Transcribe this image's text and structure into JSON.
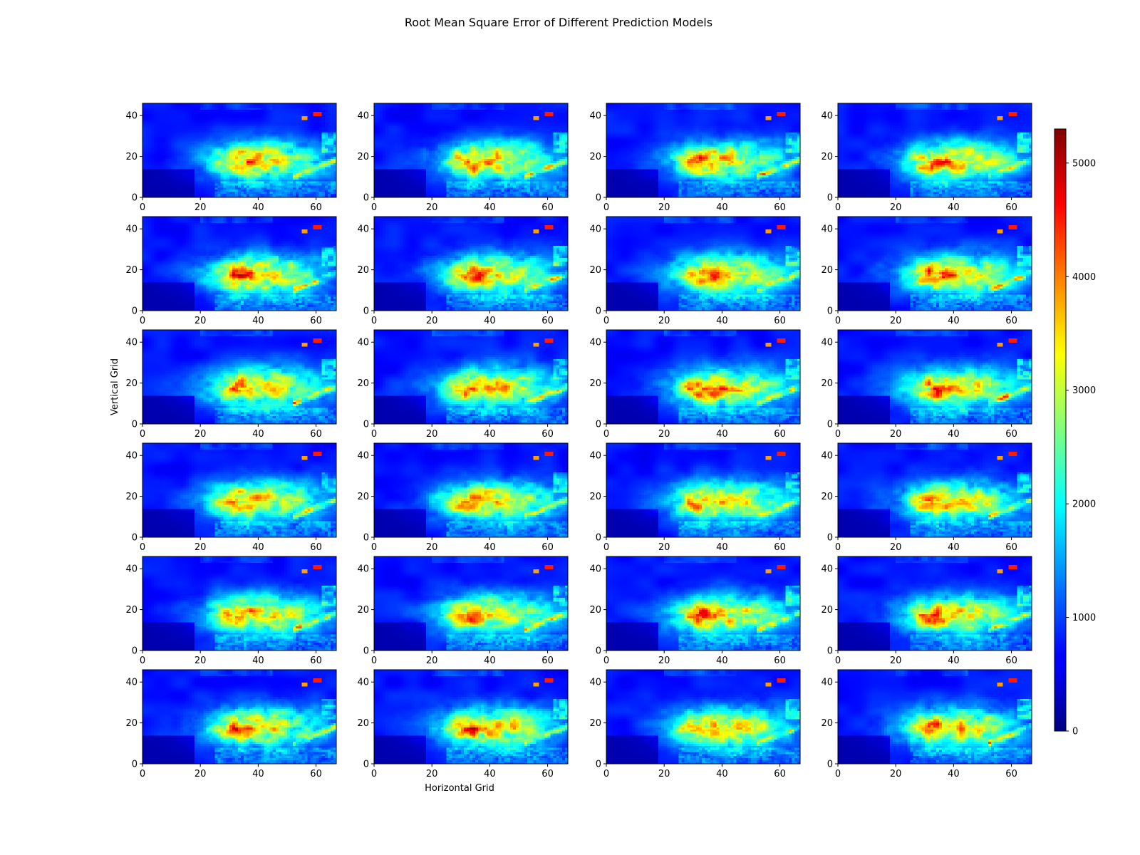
{
  "chart_data": {
    "type": "heatmap",
    "title": "Root Mean Square Error of Different Prediction Models",
    "xlabel": "Horizontal Grid",
    "ylabel": "Vertical Grid",
    "grid_layout": {
      "rows": 6,
      "cols": 4
    },
    "xlim": [
      0,
      67
    ],
    "ylim": [
      0,
      46
    ],
    "x_ticks": [
      0,
      20,
      40,
      60
    ],
    "y_ticks": [
      0,
      20,
      40
    ],
    "colormap": "jet",
    "color_range": [
      0,
      5300
    ],
    "colorbar_ticks": [
      0,
      1000,
      2000,
      3000,
      4000,
      5000
    ],
    "grid_shape": {
      "nx": 67,
      "ny": 46
    },
    "grid_on": false,
    "legend": "colorbar-right",
    "panels_count": 24
  }
}
